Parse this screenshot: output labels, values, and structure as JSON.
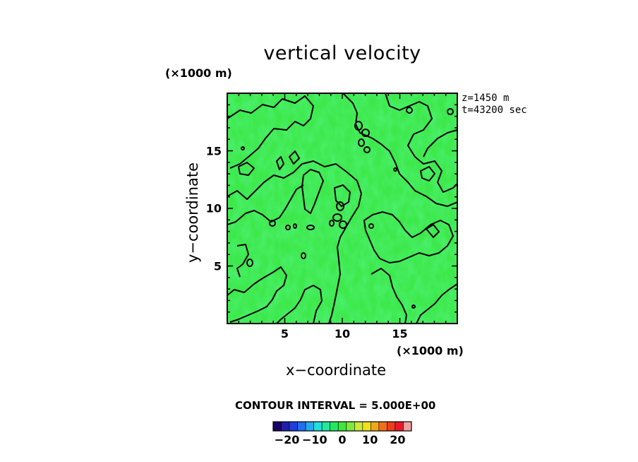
{
  "chart_data": {
    "type": "heatmap",
    "title": "vertical velocity",
    "xlabel": "x−coordinate",
    "ylabel": "y−coordinate",
    "x_unit": "(×1000 m)",
    "y_unit": "(×1000 m)",
    "xlim": [
      0,
      20
    ],
    "ylim": [
      0,
      20
    ],
    "x_ticks": [
      "5",
      "10",
      "15"
    ],
    "y_ticks": [
      "5",
      "10",
      "15"
    ],
    "x_tick_values": [
      5,
      10,
      15
    ],
    "y_tick_values": [
      5,
      10,
      15
    ],
    "info_lines": [
      "z=1450  m",
      "t=43200 sec"
    ],
    "contour_interval_text": "CONTOUR INTERVAL = 5.000E+00",
    "contour_interval": 5.0,
    "contour_level": 0,
    "colorbar": {
      "range": [
        -25,
        25
      ],
      "tick_labels": [
        "−20",
        "−10",
        "0",
        "10",
        "20"
      ],
      "tick_values": [
        -20,
        -10,
        0,
        10,
        20
      ]
    }
  },
  "colors": {
    "field_base": "#3de84a",
    "contour_line": "#000000",
    "colorbar": [
      "#1a0066",
      "#1f1faa",
      "#1f3fdd",
      "#1f6fee",
      "#22aaf0",
      "#22dddd",
      "#22e8a0",
      "#22e860",
      "#3ce83c",
      "#7ee83c",
      "#c8e83c",
      "#f0e01a",
      "#f0a81a",
      "#f0701a",
      "#f03c1a",
      "#e81a2a",
      "#f0a0a0"
    ]
  }
}
